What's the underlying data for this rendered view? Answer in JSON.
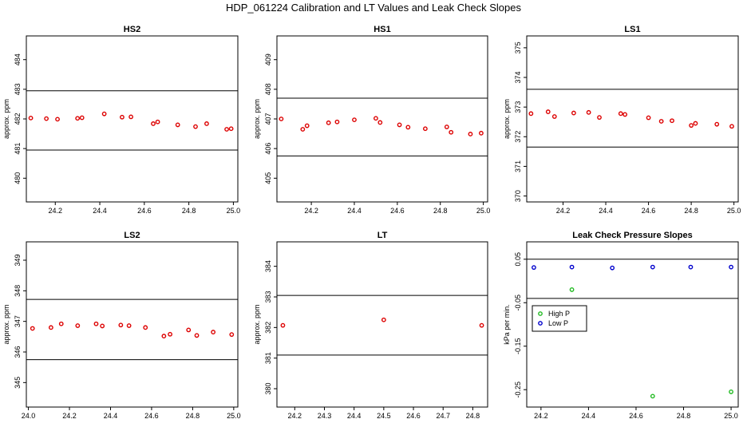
{
  "figure": {
    "title": "HDP_061224  Calibration and LT Values and Leak Check Slopes"
  },
  "chart_data": [
    {
      "type": "scatter",
      "title": "HS2",
      "ylabel": "approx. ppm",
      "xlim": [
        24.07,
        25.02
      ],
      "ylim": [
        479.2,
        484.8
      ],
      "xticks": [
        "24.2",
        "24.4",
        "24.6",
        "24.8",
        "25.0"
      ],
      "xtick_values": [
        24.2,
        24.4,
        24.6,
        24.8,
        25.0
      ],
      "yticks": [
        "480",
        "481",
        "482",
        "483",
        "484"
      ],
      "ytick_values": [
        480,
        481,
        482,
        483,
        484
      ],
      "hlines": [
        482.95,
        480.95
      ],
      "series": [
        {
          "name": "HS2",
          "color": "#dd0000",
          "x": [
            24.09,
            24.16,
            24.21,
            24.3,
            24.32,
            24.42,
            24.5,
            24.54,
            24.64,
            24.66,
            24.75,
            24.83,
            24.88,
            24.97,
            24.99
          ],
          "y": [
            482.03,
            482.01,
            481.99,
            482.02,
            482.04,
            482.17,
            482.06,
            482.07,
            481.84,
            481.9,
            481.8,
            481.74,
            481.84,
            481.65,
            481.67
          ]
        }
      ]
    },
    {
      "type": "scatter",
      "title": "HS1",
      "ylabel": "approx. ppm",
      "xlim": [
        24.04,
        25.02
      ],
      "ylim": [
        404.2,
        409.8
      ],
      "xticks": [
        "24.2",
        "24.4",
        "24.6",
        "24.8",
        "25.0"
      ],
      "xtick_values": [
        24.2,
        24.4,
        24.6,
        24.8,
        25.0
      ],
      "yticks": [
        "405",
        "406",
        "407",
        "408",
        "409"
      ],
      "ytick_values": [
        405,
        406,
        407,
        408,
        409
      ],
      "hlines": [
        407.7,
        405.75
      ],
      "series": [
        {
          "name": "HS1",
          "color": "#dd0000",
          "x": [
            24.06,
            24.16,
            24.18,
            24.28,
            24.32,
            24.4,
            24.5,
            24.52,
            24.61,
            24.65,
            24.73,
            24.83,
            24.85,
            24.94,
            24.99
          ],
          "y": [
            407.0,
            406.65,
            406.77,
            406.87,
            406.9,
            406.97,
            407.02,
            406.88,
            406.8,
            406.72,
            406.67,
            406.73,
            406.55,
            406.49,
            406.52
          ]
        }
      ]
    },
    {
      "type": "scatter",
      "title": "LS1",
      "ylabel": "approx. ppm",
      "xlim": [
        24.03,
        25.02
      ],
      "ylim": [
        369.8,
        375.4
      ],
      "xticks": [
        "24.2",
        "24.4",
        "24.6",
        "24.8",
        "25.0"
      ],
      "xtick_values": [
        24.2,
        24.4,
        24.6,
        24.8,
        25.0
      ],
      "yticks": [
        "370",
        "371",
        "372",
        "373",
        "374",
        "375"
      ],
      "ytick_values": [
        370,
        371,
        372,
        373,
        374,
        375
      ],
      "hlines": [
        373.6,
        371.65
      ],
      "series": [
        {
          "name": "LS1",
          "color": "#dd0000",
          "x": [
            24.05,
            24.13,
            24.16,
            24.25,
            24.32,
            24.37,
            24.47,
            24.49,
            24.6,
            24.66,
            24.71,
            24.8,
            24.82,
            24.92,
            24.99
          ],
          "y": [
            372.78,
            372.84,
            372.68,
            372.8,
            372.82,
            372.65,
            372.78,
            372.75,
            372.64,
            372.52,
            372.54,
            372.38,
            372.45,
            372.42,
            372.35
          ]
        }
      ]
    },
    {
      "type": "scatter",
      "title": "LS2",
      "ylabel": "approx. ppm",
      "xlim": [
        23.99,
        25.02
      ],
      "ylim": [
        344.2,
        349.6
      ],
      "xticks": [
        "24.0",
        "24.2",
        "24.4",
        "24.6",
        "24.8",
        "25.0"
      ],
      "xtick_values": [
        24.0,
        24.2,
        24.4,
        24.6,
        24.8,
        25.0
      ],
      "yticks": [
        "345",
        "346",
        "347",
        "348",
        "349"
      ],
      "ytick_values": [
        345,
        346,
        347,
        348,
        349
      ],
      "hlines": [
        347.72,
        345.75
      ],
      "series": [
        {
          "name": "LS2",
          "color": "#dd0000",
          "x": [
            24.02,
            24.11,
            24.16,
            24.24,
            24.33,
            24.36,
            24.45,
            24.49,
            24.57,
            24.66,
            24.69,
            24.78,
            24.82,
            24.9,
            24.99
          ],
          "y": [
            346.77,
            346.8,
            346.92,
            346.86,
            346.92,
            346.85,
            346.88,
            346.86,
            346.8,
            346.52,
            346.58,
            346.72,
            346.54,
            346.65,
            346.57
          ]
        }
      ]
    },
    {
      "type": "scatter",
      "title": "LT",
      "ylabel": "approx. ppm",
      "xlim": [
        24.14,
        24.85
      ],
      "ylim": [
        379.4,
        384.8
      ],
      "xticks": [
        "24.2",
        "24.3",
        "24.4",
        "24.5",
        "24.6",
        "24.7",
        "24.8"
      ],
      "xtick_values": [
        24.2,
        24.3,
        24.4,
        24.5,
        24.6,
        24.7,
        24.8
      ],
      "yticks": [
        "380",
        "381",
        "382",
        "383",
        "384"
      ],
      "ytick_values": [
        380,
        381,
        382,
        383,
        384
      ],
      "hlines": [
        383.05,
        381.1
      ],
      "series": [
        {
          "name": "LT",
          "color": "#dd0000",
          "x": [
            24.16,
            24.5,
            24.83
          ],
          "y": [
            382.07,
            382.25,
            382.07
          ]
        }
      ]
    },
    {
      "type": "scatter",
      "title": "Leak Check Pressure Slopes",
      "ylabel": "kPa per min.",
      "xlim": [
        24.14,
        25.03
      ],
      "ylim": [
        -0.29,
        0.09
      ],
      "xticks": [
        "24.2",
        "24.4",
        "24.6",
        "24.8",
        "25.0"
      ],
      "xtick_values": [
        24.2,
        24.4,
        24.6,
        24.8,
        25.0
      ],
      "yticks": [
        "-0.25",
        "-0.15",
        "-0.05",
        "0.05"
      ],
      "ytick_values": [
        -0.25,
        -0.15,
        -0.05,
        0.05
      ],
      "hlines": [
        0.05,
        -0.04
      ],
      "legend": {
        "position": "left",
        "entries": [
          "High P",
          "Low P"
        ]
      },
      "series": [
        {
          "name": "High P",
          "color": "#22bb22",
          "x": [
            24.33,
            24.67,
            25.0
          ],
          "y": [
            -0.02,
            -0.265,
            -0.255
          ]
        },
        {
          "name": "Low P",
          "color": "#0000cc",
          "x": [
            24.17,
            24.33,
            24.5,
            24.67,
            24.83,
            25.0
          ],
          "y": [
            0.031,
            0.032,
            0.03,
            0.032,
            0.032,
            0.032
          ]
        }
      ]
    }
  ]
}
